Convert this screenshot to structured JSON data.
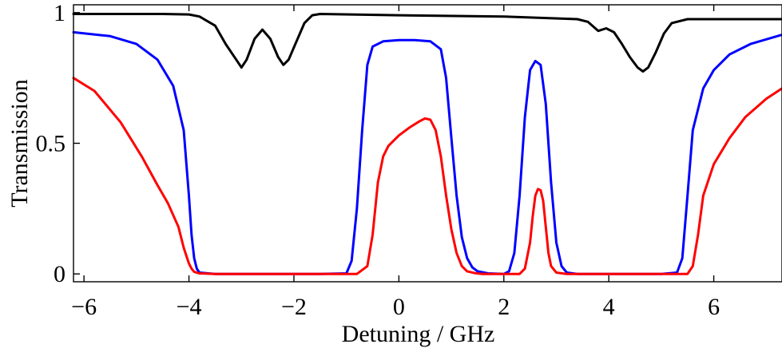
{
  "chart_data": {
    "type": "line",
    "title": "",
    "xlabel": "Detuning / GHz",
    "ylabel": "Transmission",
    "xlim": [
      -6.2,
      7.3
    ],
    "ylim": [
      -0.03,
      1.03
    ],
    "xticks": [
      -6,
      -4,
      -2,
      0,
      2,
      4,
      6
    ],
    "xtick_labels": [
      "−6",
      "−4",
      "−2",
      "0",
      "2",
      "4",
      "6"
    ],
    "yticks": [
      0,
      0.5,
      1
    ],
    "ytick_labels": [
      "0",
      "0.5",
      "1"
    ],
    "grid": false,
    "legend": "none",
    "series": [
      {
        "color": "#000000",
        "x": [
          -6.2,
          -4.5,
          -4.0,
          -3.8,
          -3.5,
          -3.3,
          -3.1,
          -3.0,
          -2.9,
          -2.75,
          -2.6,
          -2.45,
          -2.3,
          -2.2,
          -2.1,
          -1.95,
          -1.8,
          -1.65,
          -1.5,
          0,
          2,
          3.4,
          3.6,
          3.8,
          3.95,
          4.1,
          4.25,
          4.4,
          4.55,
          4.65,
          4.75,
          4.9,
          5.05,
          5.2,
          5.5,
          6.5,
          7.3
        ],
        "y": [
          0.995,
          0.995,
          0.993,
          0.985,
          0.95,
          0.88,
          0.82,
          0.79,
          0.82,
          0.9,
          0.935,
          0.9,
          0.83,
          0.8,
          0.82,
          0.89,
          0.96,
          0.99,
          0.995,
          0.99,
          0.985,
          0.975,
          0.965,
          0.93,
          0.94,
          0.925,
          0.88,
          0.83,
          0.79,
          0.775,
          0.79,
          0.85,
          0.92,
          0.96,
          0.975,
          0.975,
          0.975
        ]
      },
      {
        "color": "#0000ff",
        "x": [
          -6.2,
          -5.5,
          -5.0,
          -4.6,
          -4.3,
          -4.1,
          -4.0,
          -3.95,
          -3.9,
          -3.85,
          -3.8,
          -3.5,
          -1.5,
          -1.0,
          -0.9,
          -0.8,
          -0.7,
          -0.6,
          -0.5,
          -0.3,
          0,
          0.3,
          0.6,
          0.8,
          0.9,
          1.0,
          1.1,
          1.2,
          1.3,
          1.4,
          1.5,
          1.7,
          2.0,
          2.1,
          2.2,
          2.3,
          2.4,
          2.5,
          2.6,
          2.7,
          2.8,
          2.9,
          3.0,
          3.1,
          3.2,
          3.4,
          5.0,
          5.3,
          5.4,
          5.5,
          5.6,
          5.8,
          6.0,
          6.3,
          6.7,
          7.3
        ],
        "y": [
          0.925,
          0.91,
          0.88,
          0.82,
          0.72,
          0.55,
          0.3,
          0.15,
          0.06,
          0.02,
          0.005,
          0.0,
          0.0,
          0.002,
          0.05,
          0.25,
          0.55,
          0.8,
          0.87,
          0.89,
          0.895,
          0.895,
          0.89,
          0.86,
          0.75,
          0.52,
          0.3,
          0.14,
          0.06,
          0.025,
          0.01,
          0.002,
          0.0,
          0.01,
          0.08,
          0.3,
          0.6,
          0.78,
          0.815,
          0.8,
          0.65,
          0.35,
          0.12,
          0.03,
          0.005,
          0.0,
          0.0,
          0.005,
          0.06,
          0.3,
          0.55,
          0.71,
          0.78,
          0.84,
          0.88,
          0.915
        ]
      },
      {
        "color": "#ff0000",
        "x": [
          -6.2,
          -5.8,
          -5.3,
          -4.9,
          -4.6,
          -4.4,
          -4.2,
          -4.1,
          -4.0,
          -3.95,
          -3.9,
          -3.8,
          -3.5,
          -0.8,
          -0.6,
          -0.5,
          -0.4,
          -0.3,
          -0.2,
          0,
          0.2,
          0.4,
          0.5,
          0.6,
          0.7,
          0.8,
          0.9,
          1.0,
          1.1,
          1.2,
          1.3,
          1.45,
          1.6,
          2.3,
          2.4,
          2.5,
          2.55,
          2.6,
          2.65,
          2.7,
          2.75,
          2.8,
          2.85,
          2.9,
          3.0,
          3.2,
          5.5,
          5.6,
          5.7,
          5.8,
          6.0,
          6.3,
          6.6,
          7.0,
          7.3
        ],
        "y": [
          0.75,
          0.7,
          0.58,
          0.45,
          0.34,
          0.27,
          0.18,
          0.1,
          0.04,
          0.02,
          0.008,
          0.002,
          0.0,
          0.0,
          0.03,
          0.15,
          0.35,
          0.45,
          0.49,
          0.53,
          0.56,
          0.585,
          0.595,
          0.59,
          0.55,
          0.45,
          0.3,
          0.17,
          0.08,
          0.03,
          0.01,
          0.003,
          0.0,
          0.0,
          0.02,
          0.12,
          0.22,
          0.3,
          0.325,
          0.32,
          0.28,
          0.18,
          0.08,
          0.03,
          0.005,
          0.0,
          0.0,
          0.03,
          0.15,
          0.3,
          0.42,
          0.52,
          0.6,
          0.67,
          0.71
        ]
      }
    ]
  }
}
